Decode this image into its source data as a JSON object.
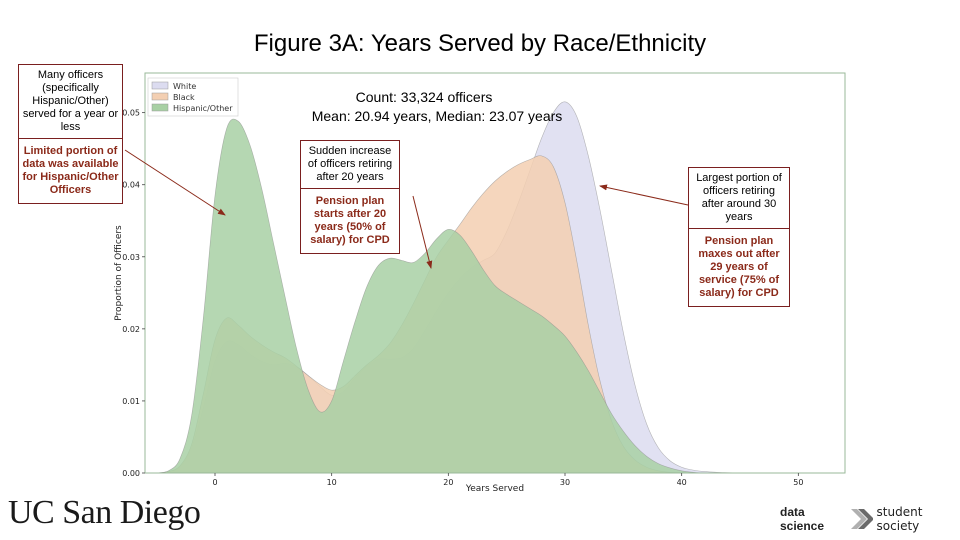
{
  "title": "Figure 3A: Years Served by Race/Ethnicity",
  "stats": {
    "count": "Count: 33,324 officers",
    "mean_median": "Mean: 20.94 years, Median: 23.07 years"
  },
  "chart_data": {
    "type": "area",
    "xlabel": "Years Served",
    "ylabel": "Proportion of Officers",
    "xlim": [
      -6,
      54
    ],
    "ylim": [
      0,
      0.0555
    ],
    "x_ticks": [
      "0",
      "10",
      "20",
      "30",
      "40",
      "50"
    ],
    "x_tick_values": [
      0,
      10,
      20,
      30,
      40,
      50
    ],
    "y_ticks": [
      "0.00",
      "0.01",
      "0.02",
      "0.03",
      "0.04",
      "0.05"
    ],
    "y_tick_values": [
      0,
      0.01,
      0.02,
      0.03,
      0.04,
      0.05
    ],
    "legend_placement": "top-left",
    "grid": false,
    "x": [
      -5,
      -4,
      -3,
      -2,
      -1,
      0,
      1,
      2,
      3,
      4,
      5,
      6,
      7,
      8,
      9,
      10,
      11,
      12,
      13,
      14,
      15,
      16,
      17,
      18,
      19,
      20,
      21,
      22,
      23,
      24,
      25,
      26,
      27,
      28,
      29,
      30,
      31,
      32,
      33,
      34,
      35,
      36,
      37,
      38,
      39,
      40,
      41,
      42,
      43,
      44,
      45,
      46,
      47,
      48,
      49,
      50
    ],
    "series": [
      {
        "name": "White",
        "color": "#dcdcf0",
        "values": [
          0,
          0.0002,
          0.0008,
          0.0035,
          0.009,
          0.0155,
          0.0182,
          0.0178,
          0.0165,
          0.0155,
          0.015,
          0.0152,
          0.0147,
          0.0135,
          0.012,
          0.0108,
          0.0113,
          0.0132,
          0.0148,
          0.0158,
          0.0158,
          0.016,
          0.0173,
          0.0198,
          0.0225,
          0.025,
          0.027,
          0.0285,
          0.0295,
          0.0305,
          0.0335,
          0.0375,
          0.042,
          0.0465,
          0.05,
          0.0515,
          0.0495,
          0.044,
          0.0365,
          0.028,
          0.0195,
          0.0122,
          0.0068,
          0.0035,
          0.0017,
          0.0008,
          0.0004,
          0.0002,
          0.0001,
          5e-05,
          0,
          0,
          0,
          0,
          0,
          0
        ]
      },
      {
        "name": "Black",
        "color": "#f3cfb2",
        "values": [
          0,
          0.0002,
          0.001,
          0.004,
          0.011,
          0.0185,
          0.0215,
          0.0205,
          0.019,
          0.0178,
          0.0168,
          0.016,
          0.0148,
          0.0135,
          0.0123,
          0.0115,
          0.012,
          0.0135,
          0.015,
          0.0163,
          0.018,
          0.0205,
          0.0235,
          0.0268,
          0.03,
          0.0323,
          0.0345,
          0.0368,
          0.0388,
          0.0405,
          0.0418,
          0.0428,
          0.0435,
          0.044,
          0.0425,
          0.0375,
          0.0295,
          0.0205,
          0.0128,
          0.0072,
          0.0037,
          0.0018,
          0.0008,
          0.0003,
          0.0001,
          5e-05,
          0,
          0,
          0,
          0,
          0,
          0,
          0,
          0,
          0,
          0
        ]
      },
      {
        "name": "Hispanic/Other",
        "color": "#a8d0a4",
        "values": [
          0,
          0.0003,
          0.002,
          0.008,
          0.0215,
          0.0385,
          0.0478,
          0.0488,
          0.0455,
          0.0395,
          0.032,
          0.0245,
          0.0172,
          0.0115,
          0.0085,
          0.01,
          0.0155,
          0.021,
          0.0258,
          0.0288,
          0.0298,
          0.0295,
          0.0292,
          0.0305,
          0.0325,
          0.0338,
          0.033,
          0.0308,
          0.0282,
          0.026,
          0.0248,
          0.0238,
          0.0228,
          0.0218,
          0.0205,
          0.019,
          0.0168,
          0.0142,
          0.0112,
          0.0082,
          0.0058,
          0.0038,
          0.0023,
          0.0013,
          0.0007,
          0.0003,
          0.0001,
          0,
          0,
          0,
          0,
          0,
          0,
          0,
          0,
          0
        ]
      }
    ]
  },
  "notes": {
    "left": {
      "top": "Many officers (specifically Hispanic/Other) served for a year or less",
      "bottom": "Limited portion of data was available for Hispanic/Other Officers"
    },
    "middle": {
      "top": "Sudden increase of officers retiring after 20 years",
      "bottom": "Pension plan starts after 20 years (50% of salary) for CPD"
    },
    "right": {
      "top": "Largest portion of officers retiring after around 30 years",
      "bottom": "Pension plan maxes out after 29 years of service (75% of salary) for CPD"
    }
  },
  "logos": {
    "ucsd": "UC San Diego",
    "dss_bold": "data science",
    "dss_thin": "student society"
  }
}
